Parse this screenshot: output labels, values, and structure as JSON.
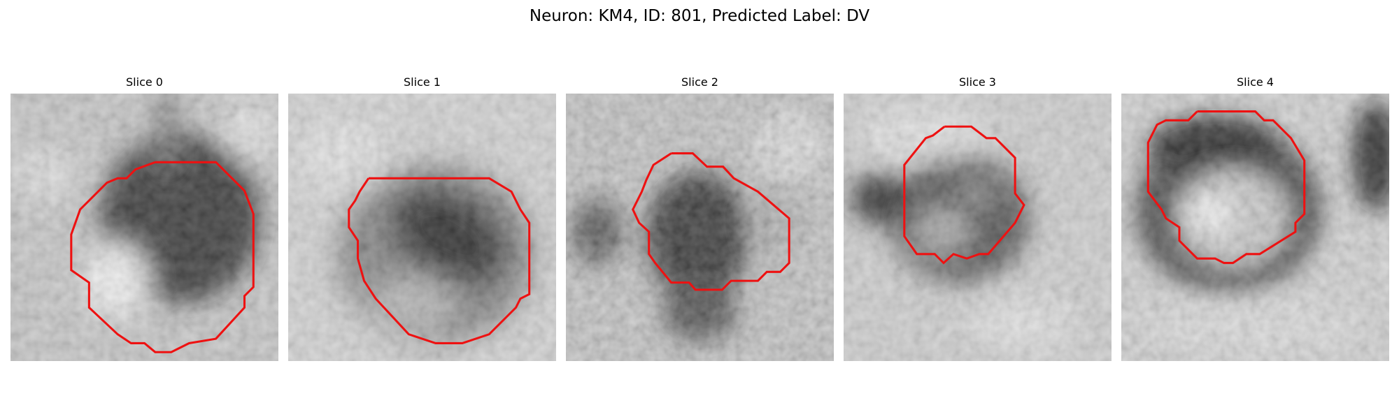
{
  "figure": {
    "title": "Neuron: KM4, ID: 801, Predicted Label: DV"
  },
  "slices": [
    {
      "label": "Slice 0"
    },
    {
      "label": "Slice 1"
    },
    {
      "label": "Slice 2"
    },
    {
      "label": "Slice 3"
    },
    {
      "label": "Slice 4"
    }
  ],
  "colors": {
    "contour": "#ee1111",
    "background": "#ffffff"
  }
}
